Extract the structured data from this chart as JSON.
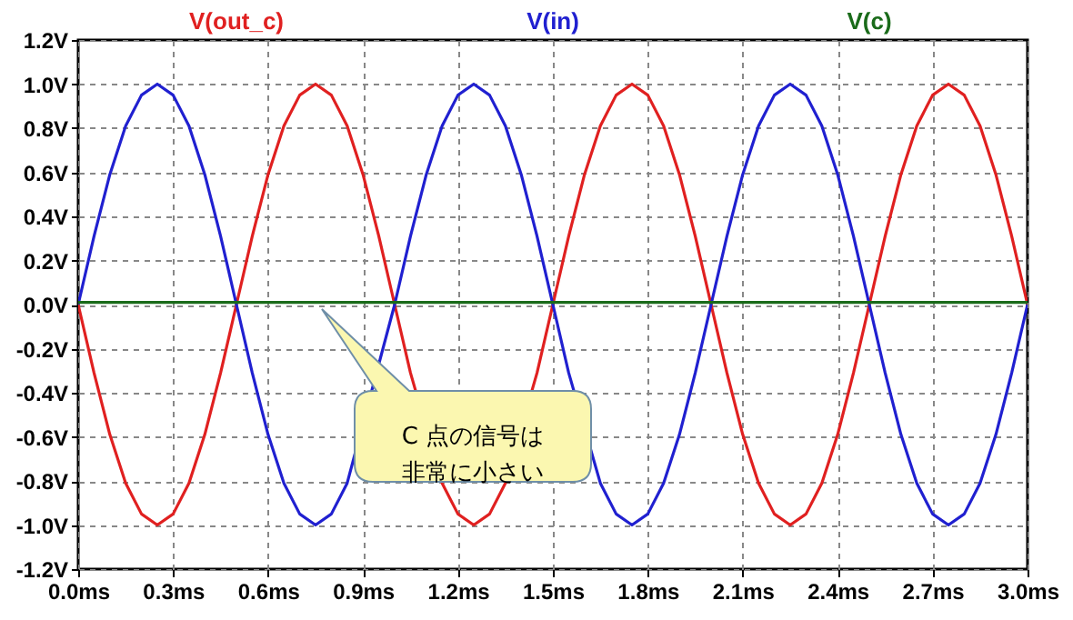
{
  "chart_data": {
    "type": "line",
    "x": [
      0,
      0.05,
      0.1,
      0.15,
      0.2,
      0.25,
      0.3,
      0.35,
      0.4,
      0.45,
      0.5,
      0.55,
      0.6,
      0.65,
      0.7,
      0.75,
      0.8,
      0.85,
      0.9,
      0.95,
      1,
      1.05,
      1.1,
      1.15,
      1.2,
      1.25,
      1.3,
      1.35,
      1.4,
      1.45,
      1.5,
      1.55,
      1.6,
      1.65,
      1.7,
      1.75,
      1.8,
      1.85,
      1.9,
      1.95,
      2,
      2.05,
      2.1,
      2.15,
      2.2,
      2.25,
      2.3,
      2.35,
      2.4,
      2.45,
      2.5,
      2.55,
      2.6,
      2.65,
      2.7,
      2.75,
      2.8,
      2.85,
      2.9,
      2.95,
      3
    ],
    "series": [
      {
        "name": "V(out_c)",
        "color": "#e02020",
        "values": [
          0,
          -0.31,
          -0.59,
          -0.81,
          -0.95,
          -1,
          -0.95,
          -0.81,
          -0.59,
          -0.31,
          0,
          0.31,
          0.59,
          0.81,
          0.95,
          1,
          0.95,
          0.81,
          0.59,
          0.31,
          0,
          -0.31,
          null,
          -0.81,
          -0.95,
          -1,
          -0.95,
          -0.81,
          null,
          -0.31,
          0,
          0.31,
          0.59,
          0.81,
          0.95,
          1,
          0.95,
          0.81,
          0.59,
          0.31,
          0,
          -0.31,
          -0.59,
          -0.81,
          -0.95,
          -1,
          -0.95,
          -0.81,
          -0.59,
          -0.31,
          0,
          0.31,
          0.59,
          0.81,
          0.95,
          1,
          0.95,
          0.81,
          0.59,
          0.31,
          0
        ]
      },
      {
        "name": "V(in)",
        "color": "#2020d0",
        "values": [
          0,
          0.31,
          0.59,
          0.81,
          0.95,
          1,
          0.95,
          0.81,
          0.59,
          0.31,
          0,
          -0.31,
          -0.59,
          -0.81,
          -0.95,
          -1,
          -0.95,
          -0.81,
          null,
          null,
          0,
          0.31,
          0.59,
          0.81,
          0.95,
          1,
          0.95,
          0.81,
          0.59,
          0.31,
          0,
          -0.31,
          null,
          -0.81,
          -0.95,
          -1,
          -0.95,
          -0.81,
          -0.59,
          -0.31,
          0,
          0.31,
          0.59,
          0.81,
          0.95,
          1,
          0.95,
          0.81,
          0.59,
          0.31,
          0,
          -0.31,
          -0.59,
          -0.81,
          -0.95,
          -1,
          -0.95,
          -0.81,
          -0.59,
          -0.31,
          0
        ]
      },
      {
        "name": "V(c)",
        "color": "#1a6b1a",
        "values": [
          0.01,
          0.01,
          0.01,
          0.01,
          0.01,
          0.01,
          0.01,
          0.01,
          0.01,
          0.01,
          0.01,
          0.01,
          0.01,
          0.01,
          0.01,
          0.01,
          0.01,
          0.01,
          0.01,
          0.01,
          0.01,
          0.01,
          0.01,
          0.01,
          0.01,
          0.01,
          0.01,
          0.01,
          0.01,
          0.01,
          0.01,
          0.01,
          0.01,
          0.01,
          0.01,
          0.01,
          0.01,
          0.01,
          0.01,
          0.01,
          0.01,
          0.01,
          0.01,
          0.01,
          0.01,
          0.01,
          0.01,
          0.01,
          0.01,
          0.01,
          0.01,
          0.01,
          0.01,
          0.01,
          0.01,
          0.01,
          0.01,
          0.01,
          0.01,
          0.01,
          0.01
        ]
      }
    ],
    "xlim": [
      0,
      3
    ],
    "xticks": [
      {
        "value": 0,
        "label": "0.0ms"
      },
      {
        "value": 0.3,
        "label": "0.3ms"
      },
      {
        "value": 0.6,
        "label": "0.6ms"
      },
      {
        "value": 0.9,
        "label": "0.9ms"
      },
      {
        "value": 1.2,
        "label": "1.2ms"
      },
      {
        "value": 1.5,
        "label": "1.5ms"
      },
      {
        "value": 1.8,
        "label": "1.8ms"
      },
      {
        "value": 2.1,
        "label": "2.1ms"
      },
      {
        "value": 2.4,
        "label": "2.4ms"
      },
      {
        "value": 2.7,
        "label": "2.7ms"
      },
      {
        "value": 3,
        "label": "3.0ms"
      }
    ],
    "ylim": [
      -1.2,
      1.2
    ],
    "yticks": [
      {
        "value": -1.2,
        "label": "-1.2V"
      },
      {
        "value": -1,
        "label": "-1.0V"
      },
      {
        "value": -0.8,
        "label": "-0.8V"
      },
      {
        "value": -0.6,
        "label": "-0.6V"
      },
      {
        "value": -0.4,
        "label": "-0.4V"
      },
      {
        "value": -0.2,
        "label": "-0.2V"
      },
      {
        "value": 0,
        "label": "0.0V"
      },
      {
        "value": 0.2,
        "label": "0.2V"
      },
      {
        "value": 0.4,
        "label": "0.4V"
      },
      {
        "value": 0.6,
        "label": "0.6V"
      },
      {
        "value": 0.8,
        "label": "0.8V"
      },
      {
        "value": 1,
        "label": "1.0V"
      },
      {
        "value": 1.2,
        "label": "1.2V"
      }
    ],
    "annotations": [
      "C 点の信号は非常に小さい"
    ],
    "grid": true,
    "legend": "top",
    "marker": "none",
    "line_style": "solid"
  }
}
